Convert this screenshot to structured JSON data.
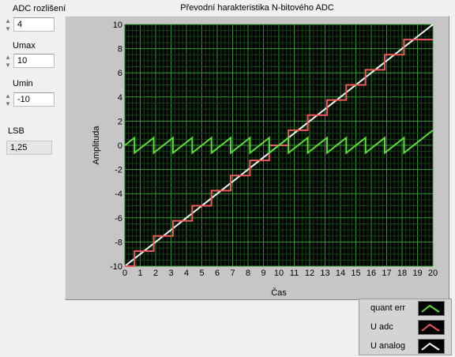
{
  "controls": {
    "adc_resolution": {
      "label": "ADC rozlišení",
      "value": "4"
    },
    "umax": {
      "label": "Umax",
      "value": "10"
    },
    "umin": {
      "label": "Umin",
      "value": "-10"
    },
    "lsb": {
      "label": "LSB",
      "value": "1,25"
    }
  },
  "legend": [
    {
      "label": "quant err",
      "color": "#5fdc3a"
    },
    {
      "label": "U adc",
      "color": "#ef5a5a"
    },
    {
      "label": "U analog",
      "color": "#ffffff"
    }
  ],
  "chart_data": {
    "type": "line",
    "title": "Převodní harakteristika N-bitového ADC",
    "xlabel": "Čas",
    "ylabel": "Amplituda",
    "xlim": [
      0,
      20
    ],
    "ylim": [
      -10,
      10
    ],
    "x_ticks": [
      "0",
      "1",
      "2",
      "3",
      "4",
      "5",
      "6",
      "7",
      "8",
      "9",
      "10",
      "11",
      "12",
      "13",
      "14",
      "15",
      "16",
      "17",
      "18",
      "19",
      "20"
    ],
    "y_ticks": [
      "-10",
      "-8",
      "-6",
      "-4",
      "-2",
      "0",
      "2",
      "4",
      "6",
      "8",
      "10"
    ],
    "grid": true,
    "background": "#000000",
    "grid_color": "#1e7a1e",
    "series": [
      {
        "name": "U analog",
        "color": "#ffffff",
        "x": [
          0,
          20
        ],
        "y": [
          -10,
          10
        ]
      },
      {
        "name": "U adc",
        "color": "#ef5a5a",
        "step": "post",
        "x": [
          0,
          0.625,
          1.875,
          3.125,
          4.375,
          5.625,
          6.875,
          8.125,
          9.375,
          10.625,
          11.875,
          13.125,
          14.375,
          15.625,
          16.875,
          18.125,
          20
        ],
        "y": [
          -10,
          -8.75,
          -7.5,
          -6.25,
          -5,
          -3.75,
          -2.5,
          -1.25,
          0,
          1.25,
          2.5,
          3.75,
          5,
          6.25,
          7.5,
          8.75,
          8.75
        ]
      },
      {
        "name": "quant err",
        "color": "#5fdc3a",
        "sawtooth": true,
        "x": [
          0,
          0.625,
          1.875,
          3.125,
          4.375,
          5.625,
          6.875,
          8.125,
          9.375,
          10.625,
          11.875,
          13.125,
          14.375,
          15.625,
          16.875,
          18.125,
          20
        ],
        "y": [
          0,
          0.625,
          0.625,
          0.625,
          0.625,
          0.625,
          0.625,
          0.625,
          0.625,
          0.625,
          0.625,
          0.625,
          0.625,
          0.625,
          0.625,
          0.625,
          1.25
        ]
      }
    ]
  }
}
